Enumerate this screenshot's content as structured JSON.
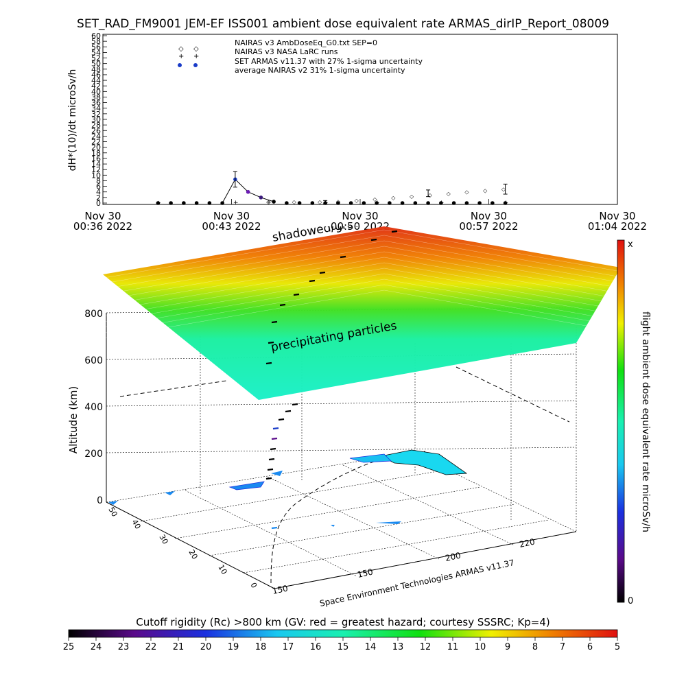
{
  "title": "SET_RAD_FM9001  JEM-EF ISS001 ambient dose equivalent rate ARMAS_dirIP_Report_08009",
  "chart_data": [
    {
      "type": "line",
      "ylabel": "dH*(10)/dt microSv/h",
      "ylim": [
        0,
        60
      ],
      "yticks": [
        0,
        2,
        4,
        6,
        8,
        10,
        12,
        14,
        16,
        18,
        20,
        22,
        24,
        26,
        28,
        30,
        32,
        34,
        36,
        38,
        40,
        42,
        44,
        46,
        48,
        50,
        52,
        54,
        56,
        58,
        60
      ],
      "xlim_minutes": [
        36,
        64
      ],
      "xticks": [
        {
          "minute": 36,
          "date": "Nov 30",
          "time": "00:36 2022"
        },
        {
          "minute": 43,
          "date": "Nov 30",
          "time": "00:43 2022"
        },
        {
          "minute": 50,
          "date": "Nov 30",
          "time": "00:50 2022"
        },
        {
          "minute": 57,
          "date": "Nov 30",
          "time": "00:57 2022"
        },
        {
          "minute": 64,
          "date": "Nov 30",
          "time": "01:04 2022"
        }
      ],
      "legend": [
        "NAIRAS v3 AmbDoseEq_G0.txt SEP=0",
        "NAIRAS v3 NASA LaRC runs",
        "SET ARMAS v11.37 with 27% 1-sigma uncertainty",
        "average NAIRAS v2 31% 1-sigma uncertainty"
      ],
      "series": [
        {
          "name": "SET ARMAS v11.37 with 27% 1-sigma uncertainty",
          "x": [
            39.0,
            39.7,
            40.4,
            41.1,
            41.8,
            42.5,
            43.2,
            43.9,
            44.6,
            45.3,
            46.0,
            46.7,
            47.4,
            48.1,
            48.8,
            49.5,
            50.2,
            50.9,
            51.6,
            52.3,
            53.0,
            53.7,
            54.4,
            55.1,
            55.8,
            56.5,
            57.2,
            57.9
          ],
          "y": [
            0.0,
            0.0,
            0.0,
            0.0,
            0.0,
            0.0,
            8.5,
            4.0,
            2.0,
            0.5,
            0.0,
            0.0,
            0.0,
            0.0,
            0.0,
            0.0,
            0.0,
            0.0,
            0.0,
            0.0,
            0.0,
            0.0,
            0.0,
            0.0,
            0.0,
            0.0,
            0.0,
            0.0
          ],
          "colors": [
            "#000000",
            "#000000",
            "#000000",
            "#000000",
            "#000000",
            "#000000",
            "#1a3cc8",
            "#6a1ab4",
            "#3a1a7a",
            "#000000",
            "#000000",
            "#000000",
            "#000000",
            "#000000",
            "#000000",
            "#000000",
            "#000000",
            "#000000",
            "#000000",
            "#000000",
            "#000000",
            "#000000",
            "#000000",
            "#000000",
            "#000000",
            "#000000",
            "#000000",
            "#000000"
          ]
        },
        {
          "name": "NAIRAS v3 AmbDoseEq_G0.txt SEP=0",
          "x": [
            45.0,
            46.4,
            47.8,
            48.8,
            49.8,
            50.8,
            51.8,
            52.8,
            53.8,
            54.8,
            55.8,
            56.8,
            57.8
          ],
          "y": [
            0.5,
            0.5,
            0.5,
            0.6,
            1.0,
            1.5,
            2.0,
            2.5,
            3.0,
            3.5,
            4.0,
            4.5,
            5.0
          ]
        },
        {
          "name": "NAIRAS v3 NASA LaRC runs",
          "x": [
            39.0,
            43.2,
            45.0,
            48.1,
            50.9,
            54.4,
            57.9
          ],
          "y": [
            0.1,
            0.3,
            0.4,
            0.3,
            0.2,
            0.2,
            0.2
          ]
        }
      ],
      "errorbars": [
        {
          "x": 43.2,
          "y": 8.5,
          "err": 2.8
        },
        {
          "x": 48.1,
          "y": 0.3,
          "err": 0.6
        },
        {
          "x": 53.7,
          "y": 3.5,
          "err": 1.2
        },
        {
          "x": 57.9,
          "y": 5.0,
          "err": 1.8
        }
      ]
    },
    {
      "type": "surface",
      "zlabel": "Altitude (km)",
      "zticks": [
        0,
        200,
        400,
        600,
        800
      ],
      "lat_ticks": [
        0,
        10,
        20,
        30,
        40,
        50
      ],
      "lon_ticks": [
        150,
        200,
        220
      ],
      "annotations": [
        "shadowed/ground path",
        "precipitating particles"
      ],
      "credit": "Space Environment Technologies ARMAS v11.37"
    },
    {
      "type": "colorbar",
      "label": "flight ambient dose equivalent rate microSv/h",
      "top_label": "x",
      "bottom_label": "0"
    },
    {
      "type": "colorbar",
      "label": "Cutoff rigidity (Rc) >800 km (GV: red = greatest hazard; courtesy SSSRC; Kp=4)",
      "ticks": [
        25,
        24,
        23,
        22,
        21,
        20,
        19,
        18,
        17,
        16,
        15,
        14,
        13,
        12,
        11,
        10,
        9,
        8,
        7,
        6,
        5
      ]
    }
  ]
}
